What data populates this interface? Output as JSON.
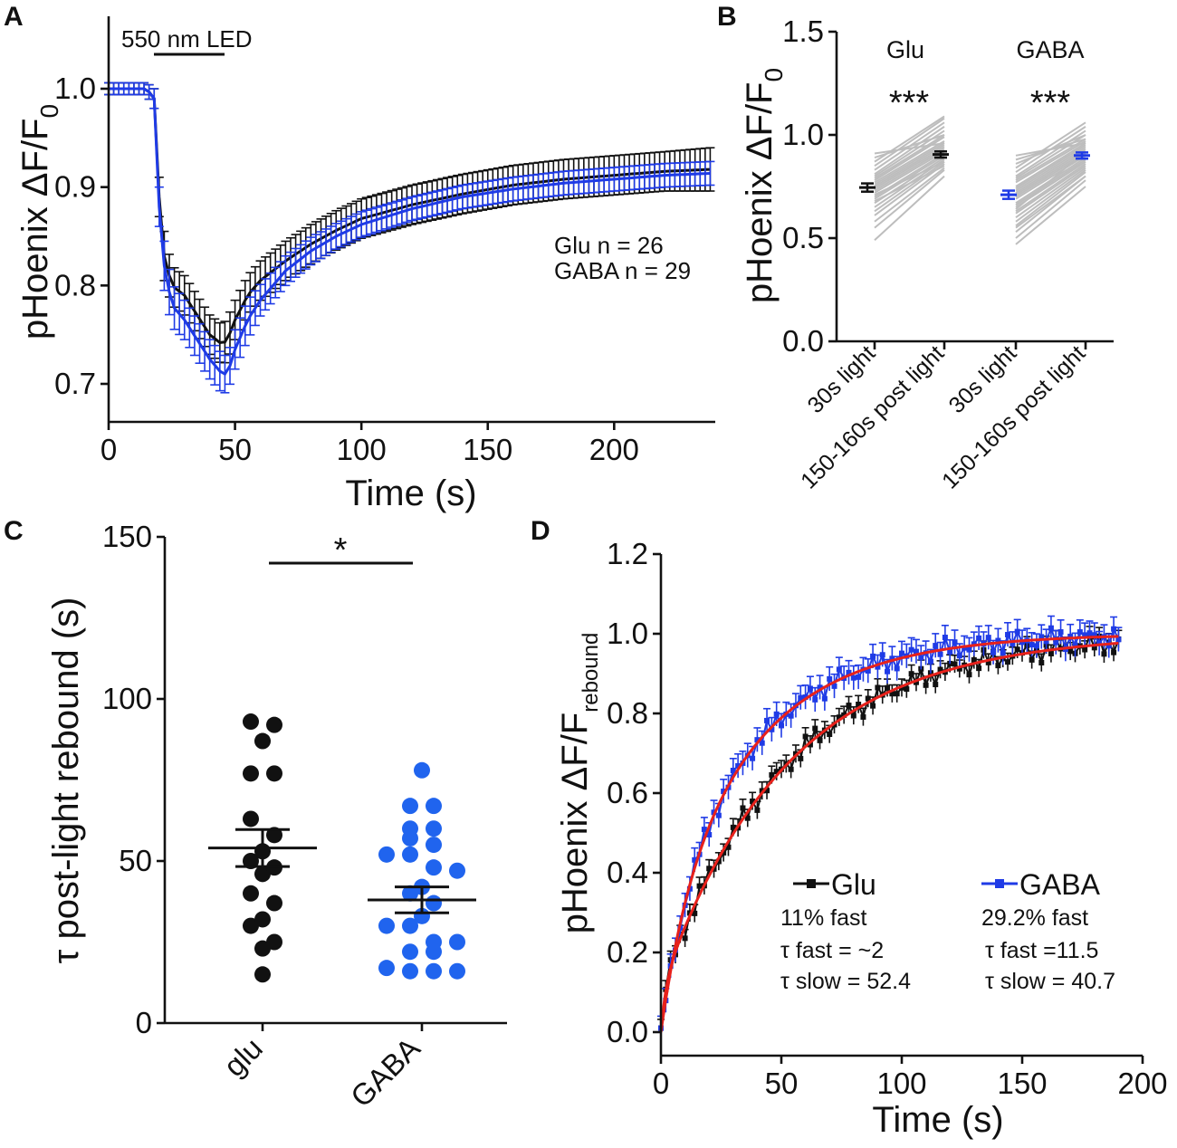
{
  "colors": {
    "glu": "#111111",
    "gaba": "#1f3be6",
    "gaba_dots": "#2064ee",
    "pairs": "#bdbdbd",
    "fit": "#e8211b"
  },
  "chart_data": [
    {
      "panel": "A",
      "type": "line",
      "title": "",
      "xlabel": "Time (s)",
      "ylabel": "pHoenix ΔF/F",
      "ylabel_sub": "0",
      "xlim": [
        0,
        240
      ],
      "ylim": [
        0.66,
        1.06
      ],
      "xticks": [
        "0",
        "50",
        "100",
        "150",
        "200"
      ],
      "yticks": [
        "0.7",
        "0.8",
        "0.9",
        "1.0"
      ],
      "stimulus": {
        "label": "550 nm LED",
        "start": 18,
        "end": 46
      },
      "legend": {
        "glu": "Glu n = 26",
        "gaba": "GABA n = 29",
        "placement": "right"
      },
      "series": [
        {
          "name": "Glu",
          "x": [
            0,
            5,
            10,
            15,
            18,
            20,
            22,
            25,
            30,
            35,
            40,
            45,
            47,
            50,
            55,
            60,
            70,
            80,
            90,
            100,
            120,
            140,
            160,
            180,
            200,
            220,
            238
          ],
          "y": [
            1.0,
            1.0,
            1.0,
            1.0,
            0.99,
            0.89,
            0.83,
            0.8,
            0.79,
            0.77,
            0.75,
            0.74,
            0.745,
            0.765,
            0.79,
            0.805,
            0.825,
            0.842,
            0.856,
            0.868,
            0.882,
            0.893,
            0.902,
            0.908,
            0.912,
            0.916,
            0.918
          ],
          "err": [
            0.006,
            0.006,
            0.006,
            0.006,
            0.01,
            0.02,
            0.025,
            0.02,
            0.02,
            0.02,
            0.02,
            0.02,
            0.022,
            0.02,
            0.02,
            0.02,
            0.02,
            0.02,
            0.02,
            0.02,
            0.02,
            0.02,
            0.02,
            0.02,
            0.02,
            0.02,
            0.022
          ]
        },
        {
          "name": "GABA",
          "x": [
            0,
            5,
            10,
            15,
            18,
            20,
            22,
            25,
            30,
            35,
            40,
            45,
            47,
            50,
            55,
            60,
            70,
            80,
            90,
            100,
            120,
            140,
            160,
            180,
            200,
            220,
            238
          ],
          "y": [
            1.0,
            1.0,
            1.0,
            1.0,
            0.99,
            0.88,
            0.82,
            0.78,
            0.765,
            0.745,
            0.725,
            0.71,
            0.71,
            0.735,
            0.765,
            0.785,
            0.815,
            0.835,
            0.85,
            0.862,
            0.878,
            0.89,
            0.898,
            0.904,
            0.908,
            0.912,
            0.914
          ],
          "err": [
            0.006,
            0.006,
            0.006,
            0.006,
            0.01,
            0.02,
            0.025,
            0.022,
            0.02,
            0.02,
            0.02,
            0.02,
            0.018,
            0.02,
            0.02,
            0.016,
            0.015,
            0.014,
            0.013,
            0.013,
            0.012,
            0.012,
            0.012,
            0.012,
            0.012,
            0.012,
            0.012
          ]
        }
      ]
    },
    {
      "panel": "B",
      "type": "scatter",
      "title": "",
      "xlabel": "",
      "ylabel": "pHoenix ΔF/F",
      "ylabel_sub": "0",
      "ylim": [
        0,
        1.5
      ],
      "yticks": [
        "0.0",
        "0.5",
        "1.0",
        "1.5"
      ],
      "categories": [
        "30s light",
        "150-160s post light",
        "30s light",
        "150-160s post light"
      ],
      "groups": [
        {
          "name": "Glu",
          "significance": "***",
          "light_mean": 0.745,
          "light_sem": 0.02,
          "post_mean": 0.905,
          "post_sem": 0.015,
          "pairs": [
            [
              0.49,
              0.8
            ],
            [
              0.55,
              0.83
            ],
            [
              0.58,
              0.84
            ],
            [
              0.61,
              0.86
            ],
            [
              0.63,
              0.87
            ],
            [
              0.65,
              0.88
            ],
            [
              0.67,
              0.89
            ],
            [
              0.69,
              0.9
            ],
            [
              0.7,
              0.91
            ],
            [
              0.72,
              0.92
            ],
            [
              0.73,
              0.93
            ],
            [
              0.74,
              0.94
            ],
            [
              0.75,
              0.95
            ],
            [
              0.76,
              0.96
            ],
            [
              0.77,
              0.97
            ],
            [
              0.78,
              0.99
            ],
            [
              0.79,
              1.0
            ],
            [
              0.8,
              1.02
            ],
            [
              0.81,
              1.04
            ],
            [
              0.83,
              1.06
            ],
            [
              0.85,
              1.08
            ],
            [
              0.87,
              1.09
            ],
            [
              0.89,
              1.0
            ],
            [
              0.91,
              0.96
            ],
            [
              0.68,
              0.85
            ],
            [
              0.71,
              0.87
            ]
          ]
        },
        {
          "name": "GABA",
          "significance": "***",
          "light_mean": 0.71,
          "light_sem": 0.02,
          "post_mean": 0.9,
          "post_sem": 0.015,
          "pairs": [
            [
              0.47,
              0.75
            ],
            [
              0.5,
              0.78
            ],
            [
              0.53,
              0.8
            ],
            [
              0.56,
              0.82
            ],
            [
              0.58,
              0.83
            ],
            [
              0.6,
              0.84
            ],
            [
              0.62,
              0.85
            ],
            [
              0.63,
              0.86
            ],
            [
              0.65,
              0.87
            ],
            [
              0.66,
              0.88
            ],
            [
              0.67,
              0.89
            ],
            [
              0.69,
              0.9
            ],
            [
              0.7,
              0.91
            ],
            [
              0.71,
              0.92
            ],
            [
              0.72,
              0.93
            ],
            [
              0.73,
              0.94
            ],
            [
              0.74,
              0.95
            ],
            [
              0.75,
              0.96
            ],
            [
              0.77,
              0.97
            ],
            [
              0.78,
              0.98
            ],
            [
              0.79,
              1.0
            ],
            [
              0.8,
              1.02
            ],
            [
              0.82,
              1.04
            ],
            [
              0.84,
              1.06
            ],
            [
              0.86,
              1.0
            ],
            [
              0.88,
              0.98
            ],
            [
              0.9,
              0.96
            ],
            [
              0.55,
              0.8
            ],
            [
              0.64,
              0.92
            ]
          ]
        }
      ]
    },
    {
      "panel": "C",
      "type": "scatter",
      "title": "",
      "xlabel": "",
      "ylabel": "τ post-light rebound (s)",
      "ylim": [
        0,
        150
      ],
      "yticks": [
        "0",
        "50",
        "100",
        "150"
      ],
      "categories": [
        "glu",
        "GABA"
      ],
      "significance": "*",
      "groups": [
        {
          "name": "glu",
          "mean": 54,
          "sem": 5.7,
          "values": [
            93,
            92,
            87,
            77,
            77,
            63,
            58,
            53,
            50,
            48,
            46,
            40,
            37,
            32,
            30,
            25,
            23,
            15
          ]
        },
        {
          "name": "GABA",
          "mean": 38,
          "sem": 4,
          "values": [
            78,
            67,
            67,
            60,
            60,
            57,
            55,
            52,
            52,
            48,
            47,
            42,
            40,
            37,
            33,
            30,
            30,
            25,
            25,
            22,
            22,
            17,
            16,
            16,
            16
          ]
        }
      ]
    },
    {
      "panel": "D",
      "type": "line",
      "title": "",
      "xlabel": "Time (s)",
      "ylabel": "pHoenix ΔF/F",
      "ylabel_sub": "rebound",
      "xlim": [
        0,
        200
      ],
      "ylim": [
        0,
        1.2
      ],
      "xticks": [
        "0",
        "50",
        "100",
        "150",
        "200"
      ],
      "yticks": [
        "0.0",
        "0.2",
        "0.4",
        "0.6",
        "0.8",
        "1.0",
        "1.2"
      ],
      "legend": {
        "placement": "bottom-right"
      },
      "series": [
        {
          "name": "Glu",
          "fast_frac": 0.11,
          "tau_fast": 2,
          "tau_slow": 52.4,
          "lines": [
            "11% fast",
            "τ fast = ~2",
            "τ slow = 52.4"
          ]
        },
        {
          "name": "GABA",
          "fast_frac": 0.292,
          "tau_fast": 11.5,
          "tau_slow": 40.7,
          "lines": [
            "29.2% fast",
            "τ fast =11.5",
            "τ slow = 40.7"
          ]
        }
      ]
    }
  ],
  "panels": {
    "a": "A",
    "b": "B",
    "c": "C",
    "d": "D"
  }
}
